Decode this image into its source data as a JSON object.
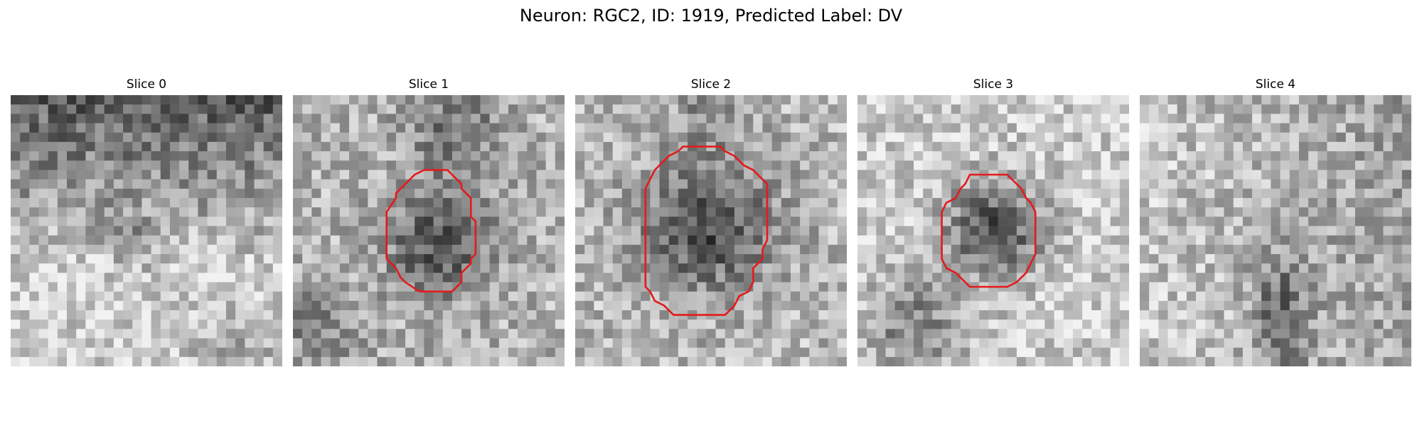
{
  "figure": {
    "title": "Neuron: RGC2, ID: 1919, Predicted Label: DV"
  },
  "outline_color": "#e41a1c",
  "slices": [
    {
      "label": "Slice 0",
      "has_outline": false,
      "seed": 11
    },
    {
      "label": "Slice 1",
      "has_outline": true,
      "seed": 23
    },
    {
      "label": "Slice 2",
      "has_outline": true,
      "seed": 37
    },
    {
      "label": "Slice 3",
      "has_outline": true,
      "seed": 51
    },
    {
      "label": "Slice 4",
      "has_outline": false,
      "seed": 67
    }
  ]
}
